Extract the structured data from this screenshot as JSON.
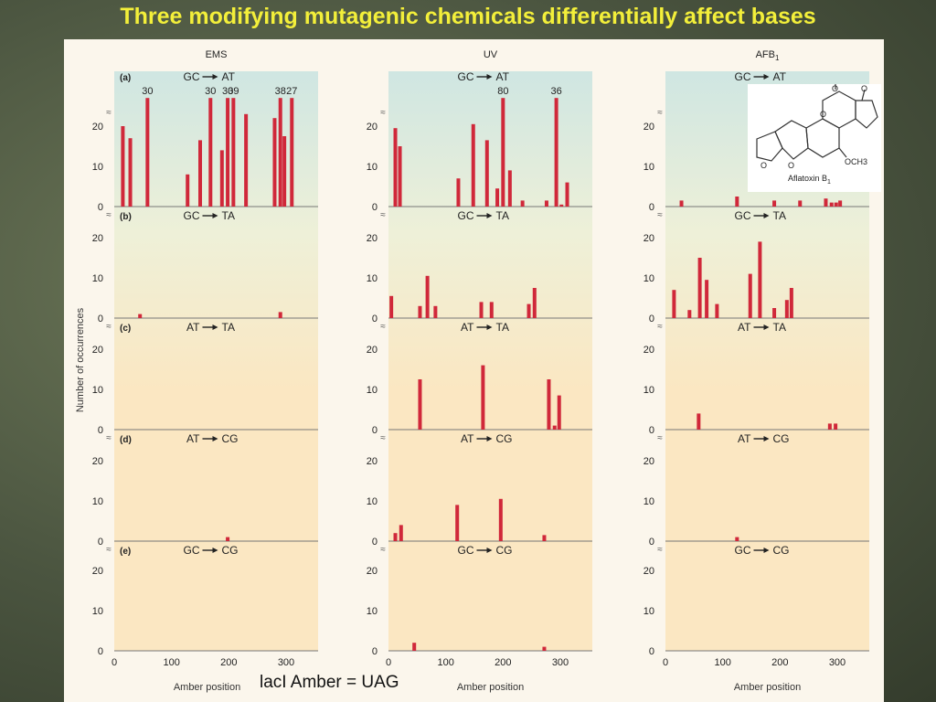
{
  "slide_title": "Three modifying mutagenic chemicals differentially affect bases",
  "caption": "lacI Amber = UAG",
  "colors": {
    "bar": "#d0283a",
    "grid_top": "#cfe6e2",
    "grid_bottom": "#fbe7c2",
    "title": "#f3ef3a"
  },
  "ylabel": "Number of occurrences",
  "xlabel": "Amber position",
  "structure": {
    "label": "Aflatoxin B",
    "subscript": "1",
    "substituent": "OCH3"
  },
  "chart_data": {
    "type": "bar",
    "xlim": [
      0,
      340
    ],
    "x_ticks": [
      "0",
      "100",
      "200",
      "300"
    ],
    "columns": [
      {
        "title": "EMS",
        "subscript": ""
      },
      {
        "title": "UV",
        "subscript": ""
      },
      {
        "title": "AFB",
        "subscript": "1"
      }
    ],
    "rows": [
      {
        "label": "(a)",
        "mutation_from": "GC",
        "mutation_to": "AT",
        "y_ticks": [
          "0",
          "10",
          "20"
        ],
        "ylim": [
          0,
          27
        ],
        "series": [
          {
            "column": "EMS",
            "bars": [
              {
                "x": 15,
                "y": 20
              },
              {
                "x": 28,
                "y": 17
              },
              {
                "x": 58,
                "y": 27,
                "label": "30"
              },
              {
                "x": 128,
                "y": 8
              },
              {
                "x": 150,
                "y": 16.5
              },
              {
                "x": 168,
                "y": 27,
                "label": "30"
              },
              {
                "x": 188,
                "y": 14
              },
              {
                "x": 198,
                "y": 27,
                "label": "30"
              },
              {
                "x": 208,
                "y": 27,
                "label": "39"
              },
              {
                "x": 230,
                "y": 23
              },
              {
                "x": 280,
                "y": 22
              },
              {
                "x": 290,
                "y": 27,
                "label": "38"
              },
              {
                "x": 297,
                "y": 17.5
              },
              {
                "x": 310,
                "y": 27,
                "label": "27"
              }
            ]
          },
          {
            "column": "UV",
            "bars": [
              {
                "x": 12,
                "y": 19.5
              },
              {
                "x": 20,
                "y": 15
              },
              {
                "x": 122,
                "y": 7
              },
              {
                "x": 148,
                "y": 20.5
              },
              {
                "x": 172,
                "y": 16.5
              },
              {
                "x": 190,
                "y": 4.5
              },
              {
                "x": 200,
                "y": 27,
                "label": "80"
              },
              {
                "x": 212,
                "y": 9
              },
              {
                "x": 234,
                "y": 1.5
              },
              {
                "x": 276,
                "y": 1.5
              },
              {
                "x": 293,
                "y": 27,
                "label": "36"
              },
              {
                "x": 302,
                "y": 0.5
              },
              {
                "x": 312,
                "y": 6
              }
            ]
          },
          {
            "column": "AFB1",
            "bars": [
              {
                "x": 28,
                "y": 1.5
              },
              {
                "x": 125,
                "y": 2.5
              },
              {
                "x": 190,
                "y": 1.5
              },
              {
                "x": 235,
                "y": 1.5
              },
              {
                "x": 280,
                "y": 2
              },
              {
                "x": 290,
                "y": 1
              },
              {
                "x": 298,
                "y": 1
              },
              {
                "x": 305,
                "y": 1.5
              }
            ]
          }
        ]
      },
      {
        "label": "(b)",
        "mutation_from": "GC",
        "mutation_to": "TA",
        "y_ticks": [
          "0",
          "10",
          "20"
        ],
        "ylim": [
          0,
          22
        ],
        "series": [
          {
            "column": "EMS",
            "bars": [
              {
                "x": 45,
                "y": 1
              },
              {
                "x": 290,
                "y": 1.5
              }
            ]
          },
          {
            "column": "UV",
            "bars": [
              {
                "x": 5,
                "y": 5.5
              },
              {
                "x": 55,
                "y": 3
              },
              {
                "x": 68,
                "y": 10.5
              },
              {
                "x": 82,
                "y": 3
              },
              {
                "x": 162,
                "y": 4
              },
              {
                "x": 180,
                "y": 4
              },
              {
                "x": 245,
                "y": 3.5
              },
              {
                "x": 255,
                "y": 7.5
              }
            ]
          },
          {
            "column": "AFB1",
            "bars": [
              {
                "x": 15,
                "y": 7
              },
              {
                "x": 42,
                "y": 2
              },
              {
                "x": 60,
                "y": 15
              },
              {
                "x": 72,
                "y": 9.5
              },
              {
                "x": 90,
                "y": 3.5
              },
              {
                "x": 148,
                "y": 11
              },
              {
                "x": 165,
                "y": 19
              },
              {
                "x": 190,
                "y": 2.5
              },
              {
                "x": 212,
                "y": 4.5
              },
              {
                "x": 220,
                "y": 7.5
              }
            ]
          }
        ]
      },
      {
        "label": "(c)",
        "mutation_from": "AT",
        "mutation_to": "TA",
        "y_ticks": [
          "0",
          "10",
          "20"
        ],
        "ylim": [
          0,
          22
        ],
        "series": [
          {
            "column": "EMS",
            "bars": []
          },
          {
            "column": "UV",
            "bars": [
              {
                "x": 55,
                "y": 12.5
              },
              {
                "x": 165,
                "y": 16
              },
              {
                "x": 280,
                "y": 12.5
              },
              {
                "x": 290,
                "y": 1
              },
              {
                "x": 298,
                "y": 8.5
              }
            ]
          },
          {
            "column": "AFB1",
            "bars": [
              {
                "x": 58,
                "y": 4
              },
              {
                "x": 287,
                "y": 1.5
              },
              {
                "x": 297,
                "y": 1.5
              }
            ]
          }
        ]
      },
      {
        "label": "(d)",
        "mutation_from": "AT",
        "mutation_to": "CG",
        "y_ticks": [
          "0",
          "10",
          "20"
        ],
        "ylim": [
          0,
          22
        ],
        "series": [
          {
            "column": "EMS",
            "bars": [
              {
                "x": 198,
                "y": 1
              }
            ]
          },
          {
            "column": "UV",
            "bars": [
              {
                "x": 12,
                "y": 2
              },
              {
                "x": 22,
                "y": 4
              },
              {
                "x": 120,
                "y": 9
              },
              {
                "x": 196,
                "y": 10.5
              },
              {
                "x": 272,
                "y": 1.5
              }
            ]
          },
          {
            "column": "AFB1",
            "bars": [
              {
                "x": 125,
                "y": 1
              }
            ]
          }
        ]
      },
      {
        "label": "(e)",
        "mutation_from": "GC",
        "mutation_to": "CG",
        "y_ticks": [
          "0",
          "10",
          "20"
        ],
        "ylim": [
          0,
          22
        ],
        "series": [
          {
            "column": "EMS",
            "bars": []
          },
          {
            "column": "UV",
            "bars": [
              {
                "x": 45,
                "y": 2
              },
              {
                "x": 272,
                "y": 1
              }
            ]
          },
          {
            "column": "AFB1",
            "bars": []
          }
        ]
      }
    ]
  }
}
